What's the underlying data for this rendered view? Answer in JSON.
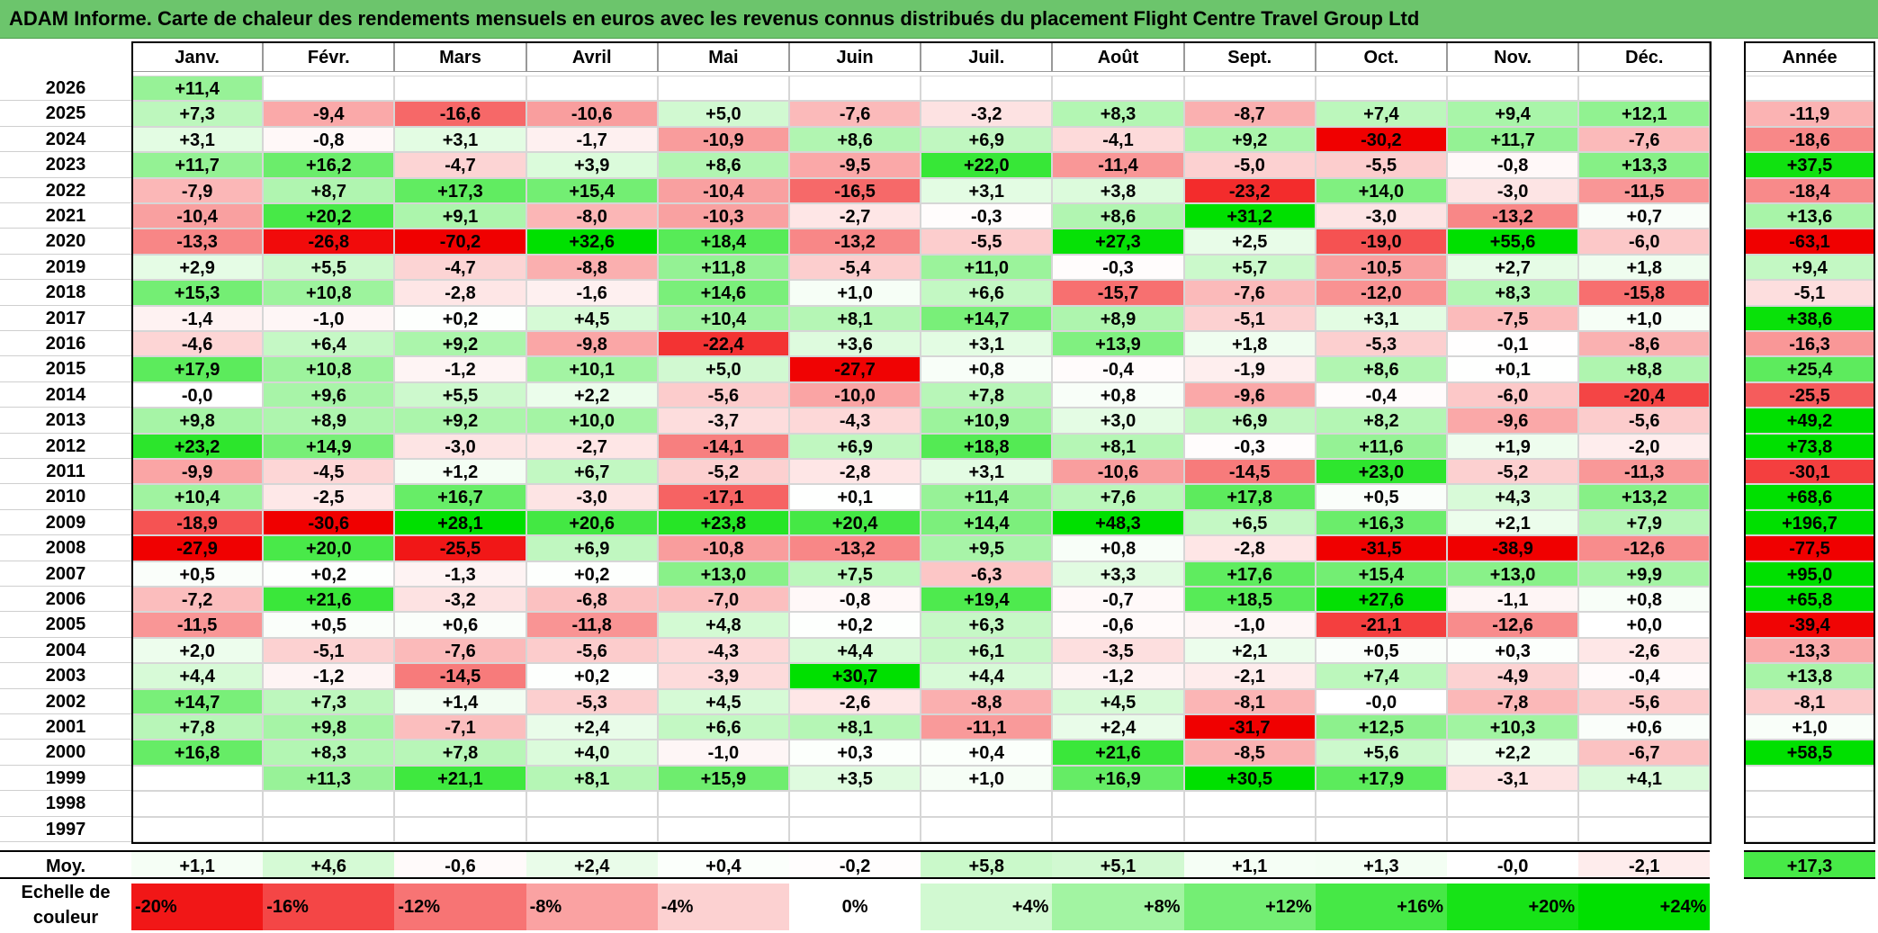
{
  "title": "ADAM Informe. Carte de chaleur des rendements mensuels en euros avec les revenus connus distribués du placement Flight Centre Travel Group Ltd",
  "colors": {
    "title_bar": "#6cc56c",
    "positive": "#00e000",
    "negative": "#f00000",
    "neutral": "#ffffff"
  },
  "chart_data": {
    "type": "heatmap",
    "title": "ADAM Informe. Carte de chaleur des rendements mensuels en euros avec les revenus connus distribués du placement Flight Centre Travel Group Ltd",
    "columns": [
      "Janv.",
      "Févr.",
      "Mars",
      "Avril",
      "Mai",
      "Juin",
      "Juil.",
      "Août",
      "Sept.",
      "Oct.",
      "Nov.",
      "Déc."
    ],
    "year_column_label": "Année",
    "rows": [
      {
        "year": "2026",
        "months": [
          "+11,4",
          "",
          "",
          "",
          "",
          "",
          "",
          "",
          "",
          "",
          "",
          ""
        ],
        "annual": ""
      },
      {
        "year": "2025",
        "months": [
          "+7,3",
          "-9,4",
          "-16,6",
          "-10,6",
          "+5,0",
          "-7,6",
          "-3,2",
          "+8,3",
          "-8,7",
          "+7,4",
          "+9,4",
          "+12,1"
        ],
        "annual": "-11,9"
      },
      {
        "year": "2024",
        "months": [
          "+3,1",
          "-0,8",
          "+3,1",
          "-1,7",
          "-10,9",
          "+8,6",
          "+6,9",
          "-4,1",
          "+9,2",
          "-30,2",
          "+11,7",
          "-7,6"
        ],
        "annual": "-18,6"
      },
      {
        "year": "2023",
        "months": [
          "+11,7",
          "+16,2",
          "-4,7",
          "+3,9",
          "+8,6",
          "-9,5",
          "+22,0",
          "-11,4",
          "-5,0",
          "-5,5",
          "-0,8",
          "+13,3"
        ],
        "annual": "+37,5"
      },
      {
        "year": "2022",
        "months": [
          "-7,9",
          "+8,7",
          "+17,3",
          "+15,4",
          "-10,4",
          "-16,5",
          "+3,1",
          "+3,8",
          "-23,2",
          "+14,0",
          "-3,0",
          "-11,5"
        ],
        "annual": "-18,4"
      },
      {
        "year": "2021",
        "months": [
          "-10,4",
          "+20,2",
          "+9,1",
          "-8,0",
          "-10,3",
          "-2,7",
          "-0,3",
          "+8,6",
          "+31,2",
          "-3,0",
          "-13,2",
          "+0,7"
        ],
        "annual": "+13,6"
      },
      {
        "year": "2020",
        "months": [
          "-13,3",
          "-26,8",
          "-70,2",
          "+32,6",
          "+18,4",
          "-13,2",
          "-5,5",
          "+27,3",
          "+2,5",
          "-19,0",
          "+55,6",
          "-6,0"
        ],
        "annual": "-63,1"
      },
      {
        "year": "2019",
        "months": [
          "+2,9",
          "+5,5",
          "-4,7",
          "-8,8",
          "+11,8",
          "-5,4",
          "+11,0",
          "-0,3",
          "+5,7",
          "-10,5",
          "+2,7",
          "+1,8"
        ],
        "annual": "+9,4"
      },
      {
        "year": "2018",
        "months": [
          "+15,3",
          "+10,8",
          "-2,8",
          "-1,6",
          "+14,6",
          "+1,0",
          "+6,6",
          "-15,7",
          "-7,6",
          "-12,0",
          "+8,3",
          "-15,8"
        ],
        "annual": "-5,1"
      },
      {
        "year": "2017",
        "months": [
          "-1,4",
          "-1,0",
          "+0,2",
          "+4,5",
          "+10,4",
          "+8,1",
          "+14,7",
          "+8,9",
          "-5,1",
          "+3,1",
          "-7,5",
          "+1,0"
        ],
        "annual": "+38,6"
      },
      {
        "year": "2016",
        "months": [
          "-4,6",
          "+6,4",
          "+9,2",
          "-9,8",
          "-22,4",
          "+3,6",
          "+3,1",
          "+13,9",
          "+1,8",
          "-5,3",
          "-0,1",
          "-8,6"
        ],
        "annual": "-16,3"
      },
      {
        "year": "2015",
        "months": [
          "+17,9",
          "+10,8",
          "-1,2",
          "+10,1",
          "+5,0",
          "-27,7",
          "+0,8",
          "-0,4",
          "-1,9",
          "+8,6",
          "+0,1",
          "+8,8"
        ],
        "annual": "+25,4"
      },
      {
        "year": "2014",
        "months": [
          "-0,0",
          "+9,6",
          "+5,5",
          "+2,2",
          "-5,6",
          "-10,0",
          "+7,8",
          "+0,8",
          "-9,6",
          "-0,4",
          "-6,0",
          "-20,4"
        ],
        "annual": "-25,5"
      },
      {
        "year": "2013",
        "months": [
          "+9,8",
          "+8,9",
          "+9,2",
          "+10,0",
          "-3,7",
          "-4,3",
          "+10,9",
          "+3,0",
          "+6,9",
          "+8,2",
          "-9,6",
          "-5,6"
        ],
        "annual": "+49,2"
      },
      {
        "year": "2012",
        "months": [
          "+23,2",
          "+14,9",
          "-3,0",
          "-2,7",
          "-14,1",
          "+6,9",
          "+18,8",
          "+8,1",
          "-0,3",
          "+11,6",
          "+1,9",
          "-2,0"
        ],
        "annual": "+73,8"
      },
      {
        "year": "2011",
        "months": [
          "-9,9",
          "-4,5",
          "+1,2",
          "+6,7",
          "-5,2",
          "-2,8",
          "+3,1",
          "-10,6",
          "-14,5",
          "+23,0",
          "-5,2",
          "-11,3"
        ],
        "annual": "-30,1"
      },
      {
        "year": "2010",
        "months": [
          "+10,4",
          "-2,5",
          "+16,7",
          "-3,0",
          "-17,1",
          "+0,1",
          "+11,4",
          "+7,6",
          "+17,8",
          "+0,5",
          "+4,3",
          "+13,2"
        ],
        "annual": "+68,6"
      },
      {
        "year": "2009",
        "months": [
          "-18,9",
          "-30,6",
          "+28,1",
          "+20,6",
          "+23,8",
          "+20,4",
          "+14,4",
          "+48,3",
          "+6,5",
          "+16,3",
          "+2,1",
          "+7,9"
        ],
        "annual": "+196,7"
      },
      {
        "year": "2008",
        "months": [
          "-27,9",
          "+20,0",
          "-25,5",
          "+6,9",
          "-10,8",
          "-13,2",
          "+9,5",
          "+0,8",
          "-2,8",
          "-31,5",
          "-38,9",
          "-12,6"
        ],
        "annual": "-77,5"
      },
      {
        "year": "2007",
        "months": [
          "+0,5",
          "+0,2",
          "-1,3",
          "+0,2",
          "+13,0",
          "+7,5",
          "-6,3",
          "+3,3",
          "+17,6",
          "+15,4",
          "+13,0",
          "+9,9"
        ],
        "annual": "+95,0"
      },
      {
        "year": "2006",
        "months": [
          "-7,2",
          "+21,6",
          "-3,2",
          "-6,8",
          "-7,0",
          "-0,8",
          "+19,4",
          "-0,7",
          "+18,5",
          "+27,6",
          "-1,1",
          "+0,8"
        ],
        "annual": "+65,8"
      },
      {
        "year": "2005",
        "months": [
          "-11,5",
          "+0,5",
          "+0,6",
          "-11,8",
          "+4,8",
          "+0,2",
          "+6,3",
          "-0,6",
          "-1,0",
          "-21,1",
          "-12,6",
          "+0,0"
        ],
        "annual": "-39,4"
      },
      {
        "year": "2004",
        "months": [
          "+2,0",
          "-5,1",
          "-7,6",
          "-5,6",
          "-4,3",
          "+4,4",
          "+6,1",
          "-3,5",
          "+2,1",
          "+0,5",
          "+0,3",
          "-2,6"
        ],
        "annual": "-13,3"
      },
      {
        "year": "2003",
        "months": [
          "+4,4",
          "-1,2",
          "-14,5",
          "+0,2",
          "-3,9",
          "+30,7",
          "+4,4",
          "-1,2",
          "-2,1",
          "+7,4",
          "-4,9",
          "-0,4"
        ],
        "annual": "+13,8"
      },
      {
        "year": "2002",
        "months": [
          "+14,7",
          "+7,3",
          "+1,4",
          "-5,3",
          "+4,5",
          "-2,6",
          "-8,8",
          "+4,5",
          "-8,1",
          "-0,0",
          "-7,8",
          "-5,6"
        ],
        "annual": "-8,1"
      },
      {
        "year": "2001",
        "months": [
          "+7,8",
          "+9,8",
          "-7,1",
          "+2,4",
          "+6,6",
          "+8,1",
          "-11,1",
          "+2,4",
          "-31,7",
          "+12,5",
          "+10,3",
          "+0,6"
        ],
        "annual": "+1,0"
      },
      {
        "year": "2000",
        "months": [
          "+16,8",
          "+8,3",
          "+7,8",
          "+4,0",
          "-1,0",
          "+0,3",
          "+0,4",
          "+21,6",
          "-8,5",
          "+5,6",
          "+2,2",
          "-6,7"
        ],
        "annual": "+58,5"
      },
      {
        "year": "1999",
        "months": [
          "",
          "+11,3",
          "+21,1",
          "+8,1",
          "+15,9",
          "+3,5",
          "+1,0",
          "+16,9",
          "+30,5",
          "+17,9",
          "-3,1",
          "+4,1"
        ],
        "annual": ""
      },
      {
        "year": "1998",
        "months": [
          "",
          "",
          "",
          "",
          "",
          "",
          "",
          "",
          "",
          "",
          "",
          ""
        ],
        "annual": ""
      },
      {
        "year": "1997",
        "months": [
          "",
          "",
          "",
          "",
          "",
          "",
          "",
          "",
          "",
          "",
          "",
          ""
        ],
        "annual": ""
      }
    ],
    "average": {
      "label": "Moy.",
      "months": [
        "+1,1",
        "+4,6",
        "-0,6",
        "+2,4",
        "+0,4",
        "-0,2",
        "+5,8",
        "+5,1",
        "+1,1",
        "+1,3",
        "-0,0",
        "-2,1"
      ],
      "annual": "+17,3"
    },
    "color_scale": {
      "label": "Echelle de couleur",
      "steps": [
        {
          "label": "-20%",
          "value": -20
        },
        {
          "label": "-16%",
          "value": -16
        },
        {
          "label": "-12%",
          "value": -12
        },
        {
          "label": "-8%",
          "value": -8
        },
        {
          "label": "-4%",
          "value": -4
        },
        {
          "label": "0%",
          "value": 0
        },
        {
          "label": "+4%",
          "value": 4
        },
        {
          "label": "+8%",
          "value": 8
        },
        {
          "label": "+12%",
          "value": 12
        },
        {
          "label": "+16%",
          "value": 16
        },
        {
          "label": "+20%",
          "value": 20
        },
        {
          "label": "+24%",
          "value": 24
        }
      ]
    }
  }
}
